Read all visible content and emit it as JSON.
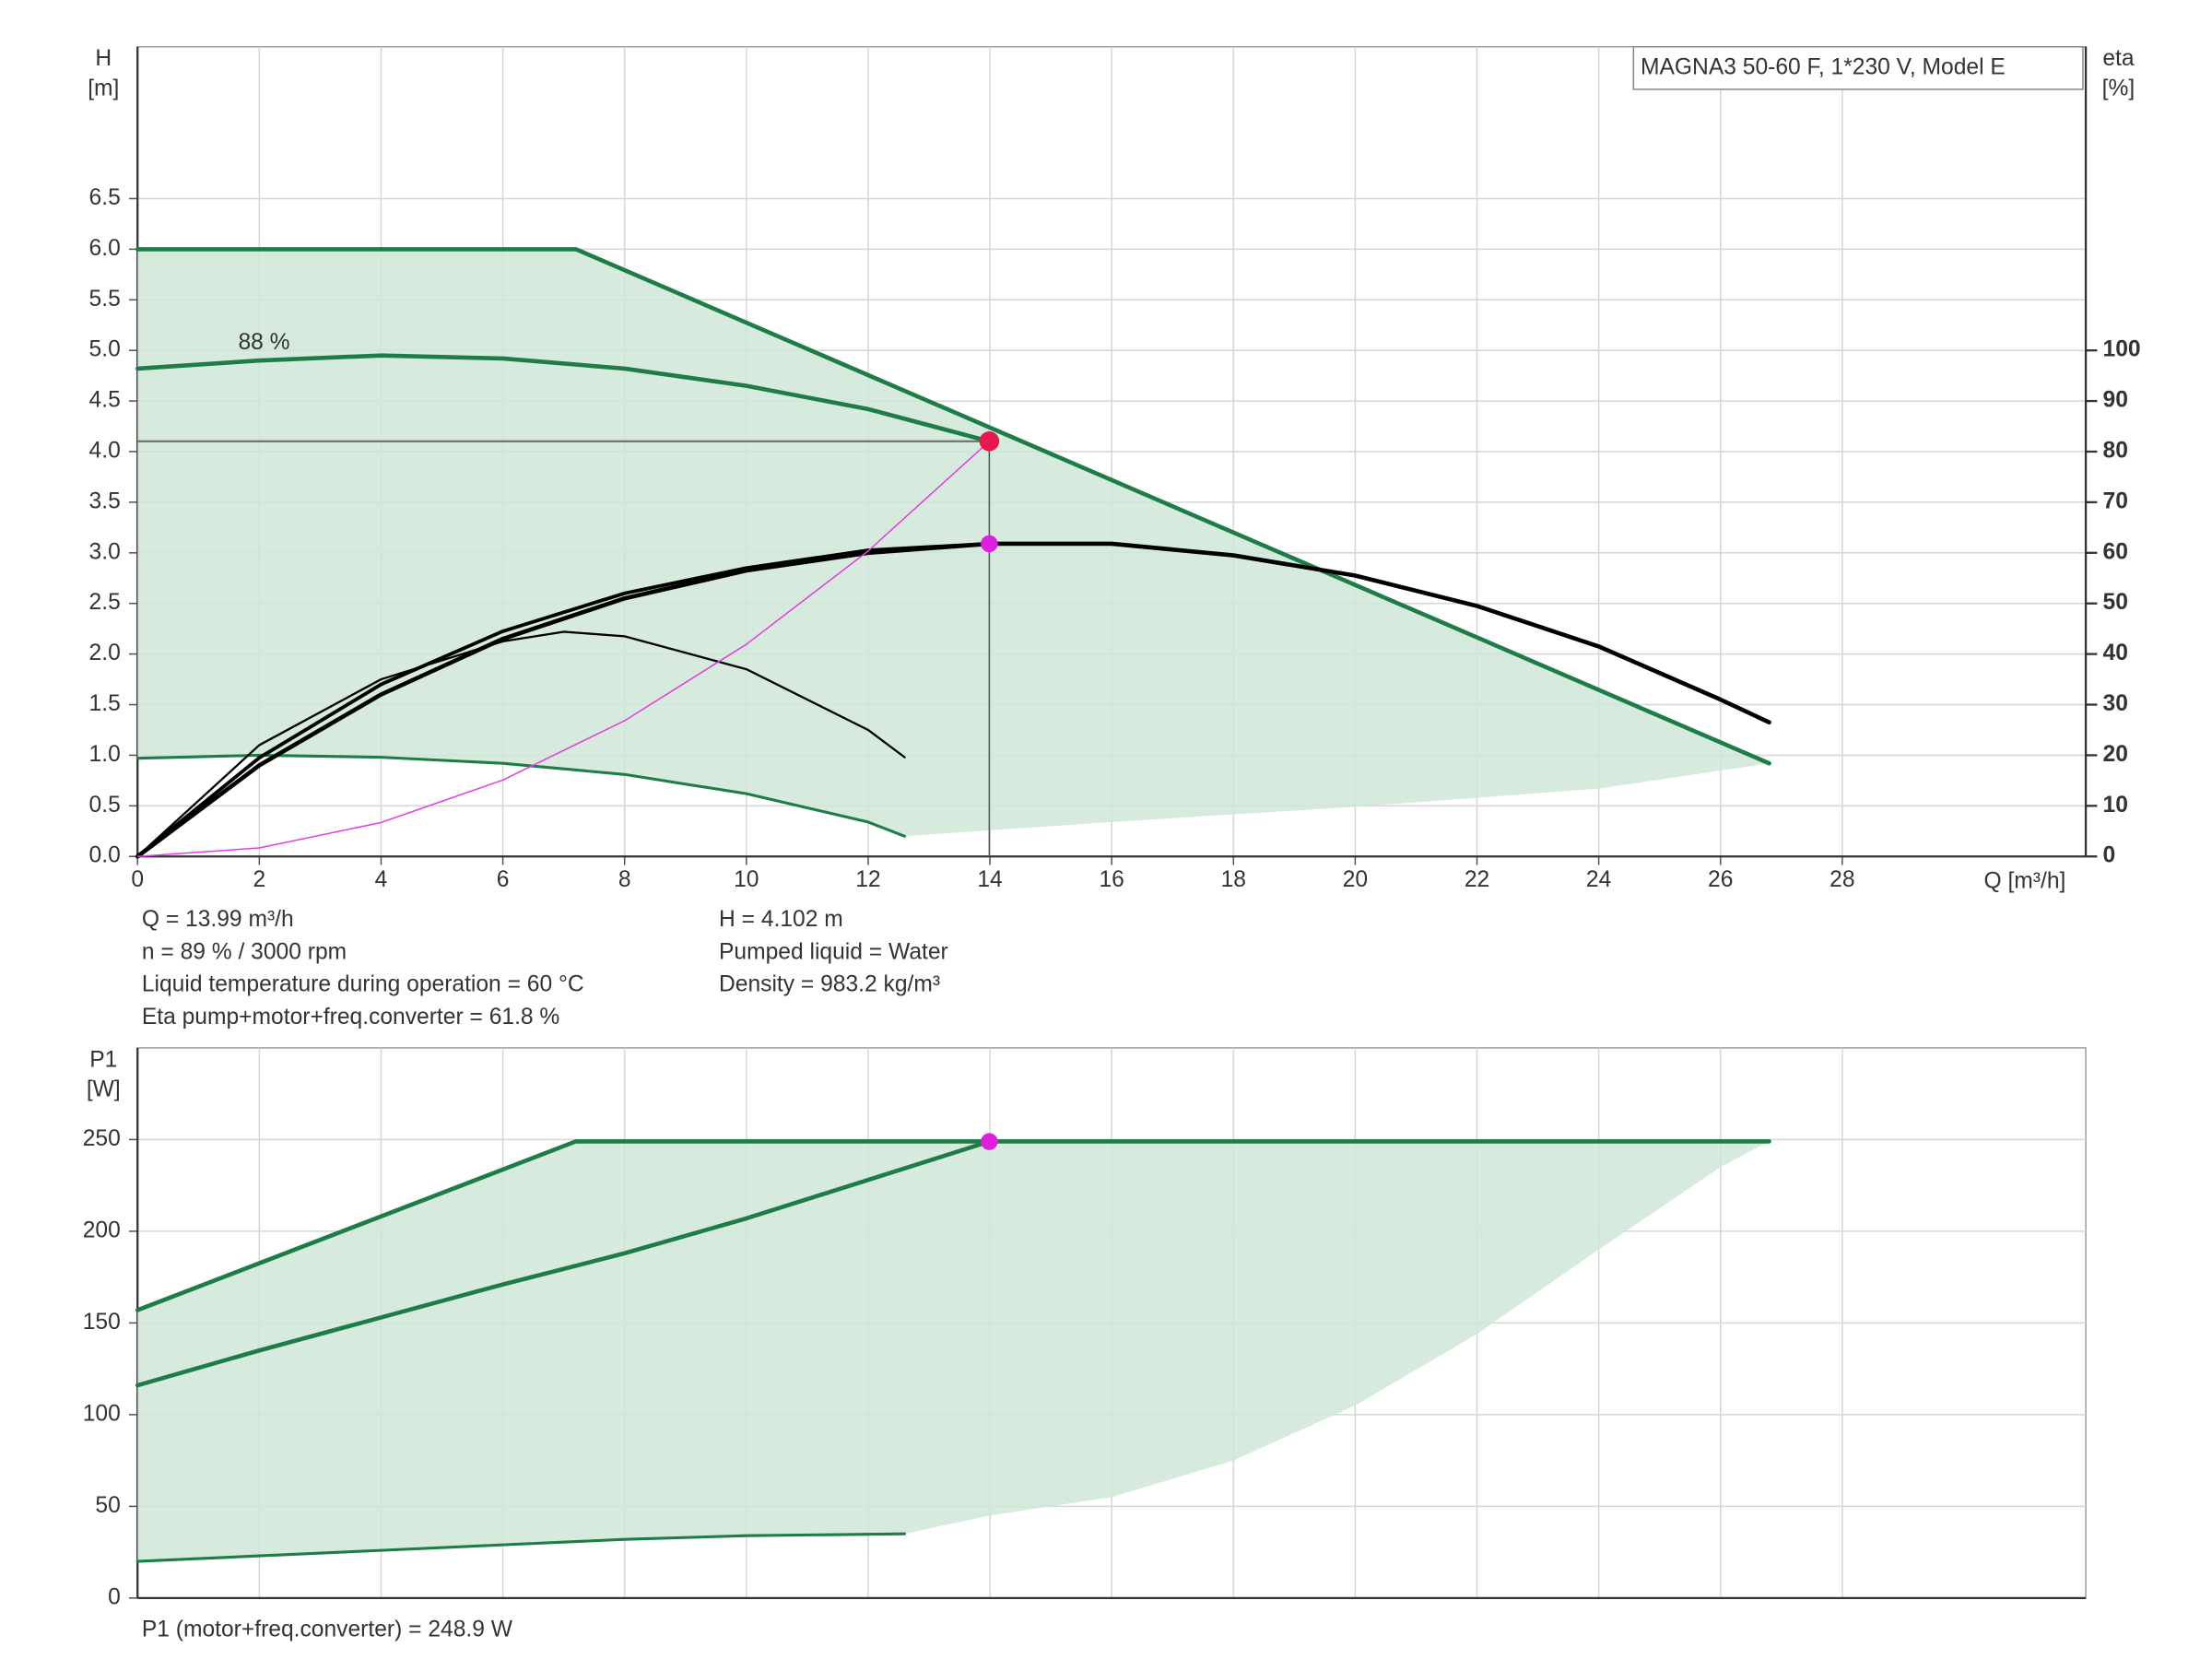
{
  "chart_data": [
    {
      "type": "line",
      "title": "MAGNA3 50-60 F, 1*230 V, Model E",
      "ylabel": [
        "H",
        "[m]"
      ],
      "y2label": [
        "eta",
        "[%]"
      ],
      "xlabel": "Q [m³/h]",
      "xlim": [
        0,
        32
      ],
      "ylim": [
        0,
        8
      ],
      "y2lim": [
        0,
        160
      ],
      "xticks": [
        0,
        2,
        4,
        6,
        8,
        10,
        12,
        14,
        16,
        18,
        20,
        22,
        24,
        26,
        28
      ],
      "yticks": [
        {
          "value": 0,
          "label": "0.0"
        },
        0.5,
        {
          "value": 1,
          "label": "1.0"
        },
        1.5,
        {
          "value": 2,
          "label": "2.0"
        },
        2.5,
        {
          "value": 3,
          "label": "3.0"
        },
        3.5,
        {
          "value": 4,
          "label": "4.0"
        },
        4.5,
        {
          "value": 5,
          "label": "5.0"
        },
        5.5,
        {
          "value": 6,
          "label": "6.0"
        },
        6.5
      ],
      "y2ticks": [
        0,
        10,
        20,
        30,
        40,
        50,
        60,
        70,
        80,
        90,
        100
      ],
      "grid": true,
      "area": {
        "color": "#cfe8d7",
        "x": [
          0,
          7.2,
          26.8,
          24,
          20,
          16,
          12.6,
          12,
          10,
          8,
          6,
          4,
          2,
          0
        ],
        "values": [
          6.0,
          6.0,
          0.92,
          0.67,
          0.49,
          0.34,
          0.2,
          0.34,
          0.62,
          0.81,
          0.92,
          0.98,
          1.0,
          0.97
        ]
      },
      "series": [
        {
          "color": "#1e7d46",
          "width": 3,
          "x": [
            0,
            7.2,
            26.8
          ],
          "values": [
            6.0,
            6.0,
            0.92
          ]
        },
        {
          "color": "#1e7d46",
          "width": 3,
          "x": [
            0,
            2,
            4,
            6,
            8,
            10,
            12,
            13.99
          ],
          "values": [
            4.82,
            4.9,
            4.95,
            4.92,
            4.82,
            4.65,
            4.42,
            4.102
          ]
        },
        {
          "color": "#1e7d46",
          "width": 2,
          "x": [
            0,
            2,
            4,
            6,
            8,
            10,
            12,
            12.6
          ],
          "values": [
            0.97,
            1.0,
            0.98,
            0.92,
            0.81,
            0.62,
            0.34,
            0.2
          ]
        },
        {
          "color": "#000000",
          "width": 3,
          "axis": "y2",
          "x": [
            0,
            2,
            4,
            6,
            8,
            10,
            12,
            14,
            16,
            18,
            20,
            22,
            24,
            26,
            26.8
          ],
          "values": [
            0,
            18,
            32,
            43,
            51,
            56.5,
            60,
            61.8,
            61.8,
            59.5,
            55.5,
            49.5,
            41.5,
            31,
            26.5
          ]
        },
        {
          "color": "#000000",
          "width": 2.5,
          "axis": "y2",
          "x": [
            0,
            2,
            4,
            6,
            8,
            10,
            12,
            13.99
          ],
          "values": [
            0,
            19.5,
            34,
            44.5,
            52,
            57,
            60.5,
            61.8
          ]
        },
        {
          "color": "#000000",
          "width": 1.5,
          "axis": "y2",
          "x": [
            0,
            2,
            4,
            6,
            7,
            8,
            10,
            12,
            12.6
          ],
          "values": [
            0,
            22,
            35,
            42.5,
            44.4,
            43.5,
            37,
            25,
            19.6
          ]
        },
        {
          "color": "#e040e0",
          "width": 1,
          "x": [
            0,
            2,
            4,
            6,
            8,
            10,
            12,
            13.99
          ],
          "values": [
            0,
            0.084,
            0.335,
            0.755,
            1.341,
            2.096,
            3.018,
            4.102
          ]
        }
      ],
      "points": [
        {
          "x": 13.99,
          "y": 4.102,
          "color": "#e8174f",
          "crosshair": true
        },
        {
          "x": 13.99,
          "y": 61.8,
          "axis": "y2",
          "color": "#e020e0"
        }
      ],
      "annotation": "88 %",
      "info_left": [
        "Q = 13.99 m³/h",
        "n = 89 % / 3000 rpm",
        "Liquid temperature during operation = 60 °C",
        "Eta pump+motor+freq.converter = 61.8 %"
      ],
      "info_right": [
        "H = 4.102 m",
        "Pumped liquid = Water",
        "Density = 983.2 kg/m³"
      ]
    },
    {
      "type": "line",
      "ylabel": [
        "P1",
        "[W]"
      ],
      "xlim": [
        0,
        32
      ],
      "ylim": [
        0,
        300
      ],
      "yticks": [
        0,
        50,
        100,
        150,
        200,
        250
      ],
      "grid": true,
      "area": {
        "color": "#cfe8d7",
        "x": [
          0,
          7.2,
          26.8,
          26,
          24,
          22,
          20,
          18,
          16,
          14,
          12.6,
          10,
          8,
          6,
          4,
          2,
          0
        ],
        "values": [
          157,
          249,
          249,
          235,
          190,
          144,
          105,
          75,
          55,
          45,
          35,
          34,
          32,
          29,
          26,
          23,
          20
        ]
      },
      "series": [
        {
          "color": "#1e7d46",
          "width": 3,
          "x": [
            0,
            7.2,
            26.8
          ],
          "values": [
            157,
            249,
            249
          ]
        },
        {
          "color": "#1e7d46",
          "width": 3,
          "x": [
            0,
            2,
            4,
            6,
            8,
            10,
            12,
            13.99
          ],
          "values": [
            116,
            135,
            153,
            171,
            188,
            207,
            228,
            248.9
          ]
        },
        {
          "color": "#1e7d46",
          "width": 2,
          "x": [
            0,
            2,
            4,
            6,
            8,
            10,
            12.6
          ],
          "values": [
            20,
            23,
            26,
            29,
            32,
            34,
            35
          ]
        }
      ],
      "points": [
        {
          "x": 13.99,
          "y": 248.9,
          "color": "#e020e0"
        }
      ],
      "info": [
        "P1 (motor+freq.converter) = 248.9 W"
      ]
    }
  ]
}
